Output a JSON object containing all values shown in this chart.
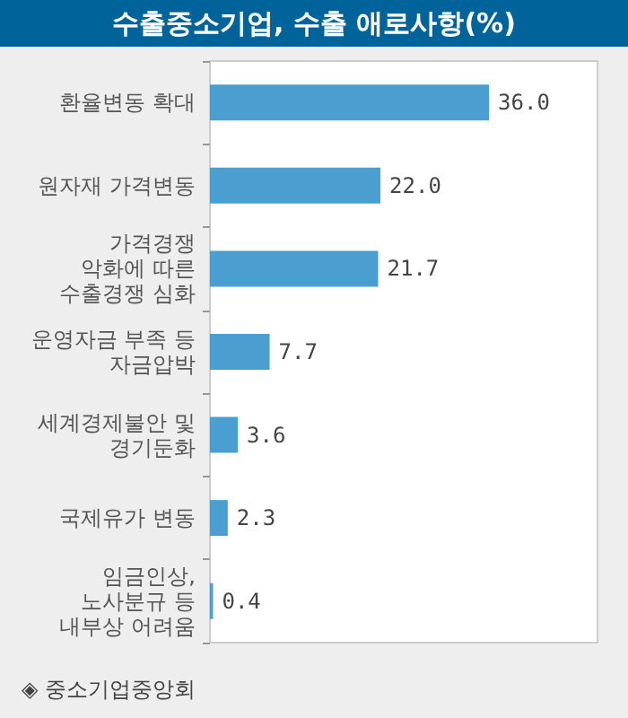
{
  "chart_data": {
    "type": "bar",
    "orientation": "horizontal",
    "title": "수출중소기업, 수출 애로사항(%)",
    "categories": [
      "환율변동 확대",
      "원자재 가격변동",
      "가격경쟁\n악화에 따른\n수출경쟁 심화",
      "운영자금 부족 등\n자금압박",
      "세계경제불안 및\n경기둔화",
      "국제유가 변동",
      "임금인상,\n노사분규 등\n내부상 어려움"
    ],
    "values": [
      36.0,
      22.0,
      21.7,
      7.7,
      3.6,
      2.3,
      0.4
    ],
    "value_labels": [
      "36.0",
      "22.0",
      "21.7",
      "7.7",
      "3.6",
      "2.3",
      "0.4"
    ],
    "color": "#4a9fd0",
    "annotations": [
      "◈ 중소기업중앙회"
    ]
  }
}
